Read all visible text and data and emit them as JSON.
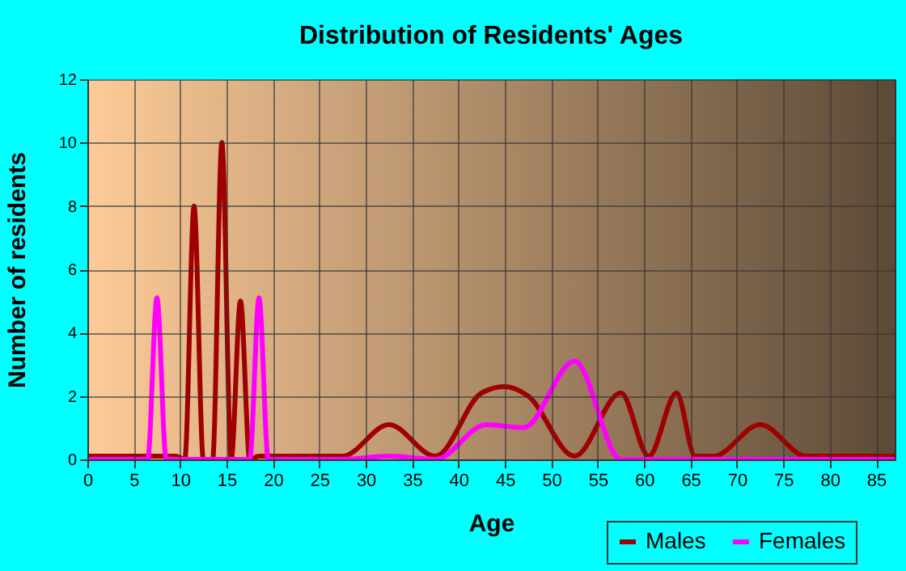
{
  "chart_data": {
    "type": "line",
    "title": "Distribution of Residents' Ages",
    "xlabel": "Age",
    "ylabel": "Number of residents",
    "xlim": [
      0,
      87
    ],
    "xticks": [
      0,
      5,
      10,
      15,
      20,
      25,
      30,
      35,
      40,
      45,
      50,
      55,
      60,
      65,
      70,
      75,
      80,
      85
    ],
    "ylim": [
      0,
      12
    ],
    "yticks": [
      0,
      2,
      4,
      6,
      8,
      10,
      12
    ],
    "grid": true,
    "legend": "bottom right",
    "marker": "none",
    "line_style": "solid",
    "series": [
      {
        "name": "Males",
        "color": "#a00000",
        "x": [
          0,
          5,
          9.5,
          10.5,
          11.5,
          12.5,
          13.5,
          14.5,
          15.5,
          16.5,
          17.5,
          18.5,
          25,
          27.5,
          32.5,
          37.5,
          42.5,
          45,
          47.5,
          52.5,
          57.5,
          60.5,
          63.5,
          65.5,
          67.5,
          72.5,
          77.5,
          87
        ],
        "values": [
          0.1,
          0.1,
          0.1,
          0,
          8,
          0,
          0,
          10,
          0,
          5,
          0,
          0.1,
          0.1,
          0.1,
          1.1,
          0.1,
          2.1,
          2.3,
          2,
          0.1,
          2.1,
          0.1,
          2.1,
          0.1,
          0.1,
          1.1,
          0.1,
          0.1
        ]
      },
      {
        "name": "Females",
        "color": "#ff00ff",
        "x": [
          0,
          6.5,
          7.5,
          8.5,
          17.5,
          18.5,
          19.5,
          27.5,
          32.5,
          37.5,
          43,
          47,
          52.5,
          57.5,
          77.5,
          87
        ],
        "values": [
          0,
          0,
          5.1,
          0,
          0,
          5.1,
          0,
          0,
          0.1,
          0,
          1.1,
          1,
          3.1,
          0,
          0,
          0
        ]
      }
    ]
  }
}
